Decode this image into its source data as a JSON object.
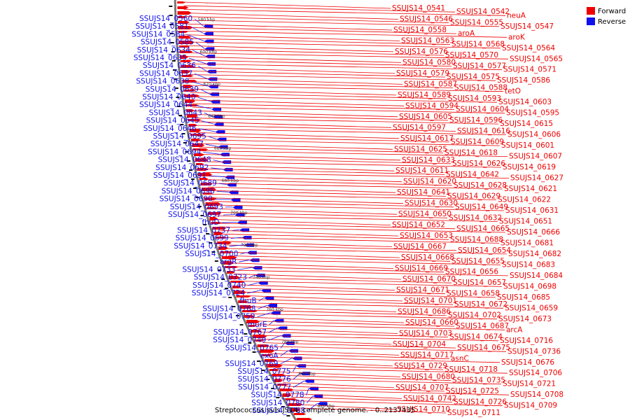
{
  "caption": "Streptococcus suis JS14, complete genome. - 0..2137435",
  "legend": [
    {
      "label": "Forward",
      "color": "#ee0000"
    },
    {
      "label": "Reverse",
      "color": "#1010ee"
    }
  ],
  "colors": {
    "forward": "#ee0000",
    "reverse": "#1010ee",
    "backbone": "#777777"
  },
  "tick_labels": [
    "580 kbp",
    "600 kbp",
    "620 kbp",
    "640 kbp",
    "660 kbp",
    "680 kbp",
    "700 kbp",
    "720 kbp",
    "740 kbp",
    "760 kbp",
    "780 kbp",
    "800 kbp",
    "820 kbp"
  ],
  "forward_labels": [
    "SSUJS14_0541",
    "SSUJS14_0542",
    "neuA",
    "SSUJS14_0546",
    "SSUJS14_0555",
    "SSUJS14_0547",
    "SSUJS14_0558",
    "aroA",
    "aroK",
    "SSUJS14_0563",
    "SSUJS14_0568",
    "SSUJS14_0564",
    "SSUJS14_0576",
    "SSUJS14_0570",
    "SSUJS14_0565",
    "SSUJS14_0580",
    "SSUJS14_0577",
    "SSUJS14_0571",
    "SSUJS14_0579",
    "SSUJS14_0575",
    "SSUJS14_0586",
    "SSUJS14_0587",
    "SSUJS14_0588",
    "tetO",
    "SSUJS14_0589",
    "SSUJS14_0593",
    "SSUJS14_0603",
    "SSUJS14_0594",
    "SSUJS14_0604",
    "SSUJS14_0595",
    "SSUJS14_0605",
    "SSUJS14_0596",
    "SSUJS14_0615",
    "SSUJS14_0597",
    "SSUJS14_0616",
    "SSUJS14_0606",
    "SSUJS14_0617",
    "SSUJS14_0609",
    "SSUJS14_0601",
    "SSUJS14_0625",
    "SSUJS14_0618",
    "SSUJS14_0607",
    "SSUJS14_0633",
    "SSUJS14_0626",
    "SSUJS14_0619",
    "SSUJS14_0611",
    "SSUJS14_0642",
    "SSUJS14_0627",
    "SSUJS14_0620",
    "SSUJS14_0628",
    "SSUJS14_0621",
    "SSUJS14_0641",
    "SSUJS14_0629",
    "SSUJS14_0622",
    "SSUJS14_0630",
    "SSUJS14_0649",
    "SSUJS14_0631",
    "SSUJS14_0650",
    "SSUJS14_0632",
    "SSUJS14_0651",
    "SSUJS14_0652",
    "SSUJS14_0665",
    "SSUJS14_0666",
    "SSUJS14_0653",
    "SSUJS14_0688",
    "SSUJS14_0681",
    "SSUJS14_0667",
    "SSUJS14_0654",
    "SSUJS14_0682",
    "SSUJS14_0668",
    "SSUJS14_0655",
    "SSUJS14_0683",
    "SSUJS14_0669",
    "SSUJS14_0656",
    "SSUJS14_0684",
    "SSUJS14_0670",
    "SSUJS14_0657",
    "SSUJS14_0698",
    "SSUJS14_0671",
    "SSUJS14_0658",
    "SSUJS14_0685",
    "SSUJS14_0701",
    "SSUJS14_0672",
    "SSUJS14_0659",
    "SSUJS14_0686",
    "SSUJS14_0702",
    "SSUJS14_0673",
    "SSUJS14_0660",
    "SSUJS14_0687",
    "arcA",
    "SSUJS14_0703",
    "SSUJS14_0674",
    "SSUJS14_0716",
    "SSUJS14_0704",
    "SSUJS14_0675",
    "SSUJS14_0736",
    "SSUJS14_0717",
    "asnC",
    "SSUJS14_0676",
    "SSUJS14_0729",
    "SSUJS14_0718",
    "SSUJS14_0706",
    "SSUJS14_0680",
    "SSUJS14_0735",
    "SSUJS14_0721",
    "SSUJS14_0707",
    "SSUJS14_0725",
    "SSUJS14_0708",
    "SSUJS14_0742",
    "SSUJS14_0726",
    "SSUJS14_0709",
    "SSUJS14_0710",
    "SSUJS14_0711"
  ],
  "reverse_labels": [
    "SSUJS14_0560",
    "SSUJS14_0581",
    "SSUJS14_0584",
    "SSUJS14_0585",
    "SSUJS14_0634",
    "SSUJS14_0635",
    "SSUJS14_0636",
    "SSUJS14_0637",
    "SSUJS14_0638",
    "SSUJS14_0639",
    "SSUJS14_0640",
    "SSUJS14_0644",
    "SSUJS14_0643",
    "SSUJS14_0645",
    "SSUJS14_0646",
    "SSUJS14_0695",
    "SSUJS14_0647",
    "SSUJS14_0694",
    "SSUJS14_0648",
    "SSUJS14_0692",
    "SSUJS14_0691",
    "SSUJS14_0689",
    "SSUJS14_0696",
    "SSUJS14_0690",
    "SSUJS14_0693",
    "SSUJS14_0697",
    "fhuD",
    "SSUJS14_0737",
    "SSUJS14_0699",
    "SSUJS14_0734",
    "SSUJS14_0700",
    "argR",
    "SSUJS14_0733",
    "SSUJS14_0723",
    "SSUJS14_0740",
    "SSUJS14_0724",
    "fhuB",
    "SSUJS14_0768",
    "SSUJS14_0759",
    "murE",
    "SSUJS14_0767",
    "SSUJS14_0749",
    "SSUJS14_0765",
    "exoA",
    "SSUJS14_0769",
    "SSUJS14_0775",
    "SSUJS14_0776",
    "SSUJS14_0777",
    "SSUJS14_0778",
    "SSUJS14_0780",
    "SSUJS14_0788"
  ]
}
